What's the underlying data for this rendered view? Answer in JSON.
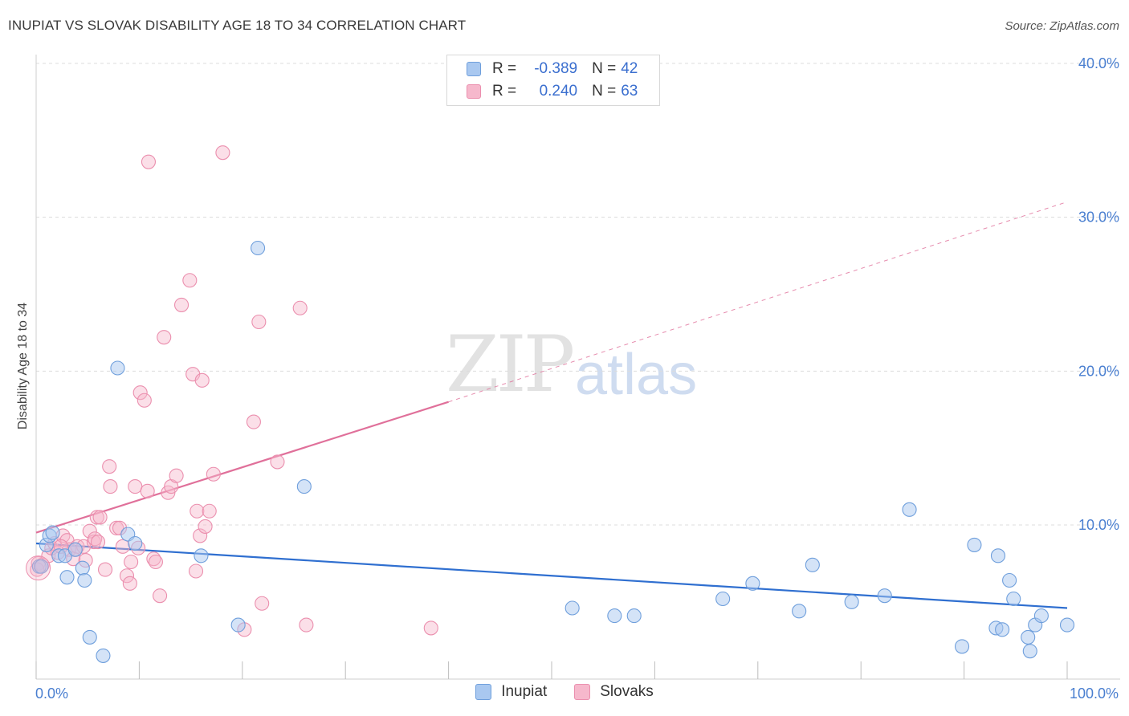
{
  "title": "INUPIAT VS SLOVAK DISABILITY AGE 18 TO 34 CORRELATION CHART",
  "source": "Source: ZipAtlas.com",
  "watermark": {
    "zip": "ZIP",
    "atlas": "atlas"
  },
  "legend": {
    "rows": [
      {
        "r_label": "R =",
        "r_value": "-0.389",
        "n_label": "N =",
        "n_value": "42"
      },
      {
        "r_label": "R =",
        "r_value": "0.240",
        "n_label": "N =",
        "n_value": "63"
      }
    ]
  },
  "colors": {
    "inupiat_fill": "#a9c8f0",
    "inupiat_stroke": "#6f9fdc",
    "inupiat_line": "#2f6fd0",
    "slovak_fill": "#f6b8cc",
    "slovak_stroke": "#eb8fae",
    "slovak_line": "#e0709a",
    "grid": "#dcdcdc",
    "tick_text": "#4a7fd0"
  },
  "chart_data": {
    "type": "scatter",
    "title": "INUPIAT VS SLOVAK DISABILITY AGE 18 TO 34 CORRELATION CHART",
    "xlabel": "",
    "ylabel": "Disability Age 18 to 34",
    "xlim": [
      0,
      100
    ],
    "ylim": [
      0,
      40
    ],
    "x_tick_labels": [
      "0.0%",
      "100.0%"
    ],
    "y_ticks": [
      10,
      20,
      30,
      40
    ],
    "y_tick_labels": [
      "10.0%",
      "20.0%",
      "30.0%",
      "40.0%"
    ],
    "grid": true,
    "legend_placement": "top-center",
    "series": [
      {
        "name": "Inupiat",
        "r": -0.389,
        "n": 42,
        "trend": {
          "x0": 0,
          "y0": 8.8,
          "x1": 100,
          "y1": 4.6,
          "style": "solid"
        },
        "points": [
          [
            0.3,
            7.3
          ],
          [
            1.0,
            8.7
          ],
          [
            1.3,
            9.3
          ],
          [
            1.6,
            9.5
          ],
          [
            2.2,
            8.0
          ],
          [
            2.8,
            8.0
          ],
          [
            3.0,
            6.6
          ],
          [
            3.8,
            8.4
          ],
          [
            4.5,
            7.2
          ],
          [
            4.7,
            6.4
          ],
          [
            5.2,
            2.7
          ],
          [
            6.5,
            1.5
          ],
          [
            7.9,
            20.2
          ],
          [
            8.9,
            9.4
          ],
          [
            9.6,
            8.8
          ],
          [
            16.0,
            8.0
          ],
          [
            19.6,
            3.5
          ],
          [
            21.5,
            28.0
          ],
          [
            26.0,
            12.5
          ],
          [
            52.0,
            4.6
          ],
          [
            56.1,
            4.1
          ],
          [
            58.0,
            4.1
          ],
          [
            66.6,
            5.2
          ],
          [
            69.5,
            6.2
          ],
          [
            74.0,
            4.4
          ],
          [
            75.3,
            7.4
          ],
          [
            79.1,
            5.0
          ],
          [
            82.3,
            5.4
          ],
          [
            84.7,
            11.0
          ],
          [
            89.8,
            2.1
          ],
          [
            91.0,
            8.7
          ],
          [
            93.1,
            3.3
          ],
          [
            93.3,
            8.0
          ],
          [
            93.7,
            3.2
          ],
          [
            94.4,
            6.4
          ],
          [
            94.8,
            5.2
          ],
          [
            96.2,
            2.7
          ],
          [
            96.4,
            1.8
          ],
          [
            96.9,
            3.5
          ],
          [
            97.5,
            4.1
          ],
          [
            100.0,
            3.5
          ],
          [
            0.5,
            7.3
          ]
        ]
      },
      {
        "name": "Slovaks",
        "r": 0.24,
        "n": 63,
        "trend": {
          "x0": 0,
          "y0": 9.5,
          "x1": 40,
          "y1": 18.0,
          "x2": 100,
          "y2": 31.0,
          "style": "solid-then-dashed"
        },
        "points": [
          [
            0.2,
            7.5
          ],
          [
            0.6,
            7.4
          ],
          [
            1.2,
            8.0
          ],
          [
            1.5,
            8.5
          ],
          [
            1.8,
            8.8
          ],
          [
            2.1,
            8.2
          ],
          [
            2.6,
            9.3
          ],
          [
            3.0,
            9.0
          ],
          [
            3.2,
            8.4
          ],
          [
            3.6,
            7.8
          ],
          [
            4.0,
            8.6
          ],
          [
            4.6,
            8.6
          ],
          [
            4.8,
            7.7
          ],
          [
            5.2,
            9.6
          ],
          [
            5.6,
            8.9
          ],
          [
            5.7,
            9.1
          ],
          [
            5.9,
            10.5
          ],
          [
            6.2,
            10.5
          ],
          [
            6.7,
            7.1
          ],
          [
            7.1,
            13.8
          ],
          [
            7.2,
            12.5
          ],
          [
            7.8,
            9.8
          ],
          [
            8.1,
            9.8
          ],
          [
            8.4,
            8.6
          ],
          [
            8.8,
            6.7
          ],
          [
            9.1,
            6.2
          ],
          [
            9.6,
            12.5
          ],
          [
            9.9,
            8.5
          ],
          [
            10.1,
            18.6
          ],
          [
            10.5,
            18.1
          ],
          [
            10.8,
            12.2
          ],
          [
            10.9,
            33.6
          ],
          [
            11.4,
            7.8
          ],
          [
            11.6,
            7.6
          ],
          [
            12.0,
            5.4
          ],
          [
            12.4,
            22.2
          ],
          [
            12.8,
            12.1
          ],
          [
            13.1,
            12.5
          ],
          [
            13.6,
            13.2
          ],
          [
            14.1,
            24.3
          ],
          [
            14.9,
            25.9
          ],
          [
            15.2,
            19.8
          ],
          [
            15.5,
            7.0
          ],
          [
            15.6,
            10.9
          ],
          [
            15.9,
            9.3
          ],
          [
            16.1,
            19.4
          ],
          [
            16.4,
            9.9
          ],
          [
            16.8,
            10.9
          ],
          [
            17.2,
            13.3
          ],
          [
            18.1,
            34.2
          ],
          [
            20.2,
            3.2
          ],
          [
            21.1,
            16.7
          ],
          [
            21.6,
            23.2
          ],
          [
            21.9,
            4.9
          ],
          [
            23.4,
            14.1
          ],
          [
            25.6,
            24.1
          ],
          [
            26.2,
            3.5
          ],
          [
            38.3,
            3.3
          ],
          [
            0.1,
            7.1
          ],
          [
            2.4,
            8.6
          ],
          [
            3.8,
            8.4
          ],
          [
            6.0,
            8.9
          ],
          [
            9.2,
            7.6
          ]
        ]
      }
    ]
  },
  "bottom_legend": [
    {
      "label": "Inupiat"
    },
    {
      "label": "Slovaks"
    }
  ]
}
